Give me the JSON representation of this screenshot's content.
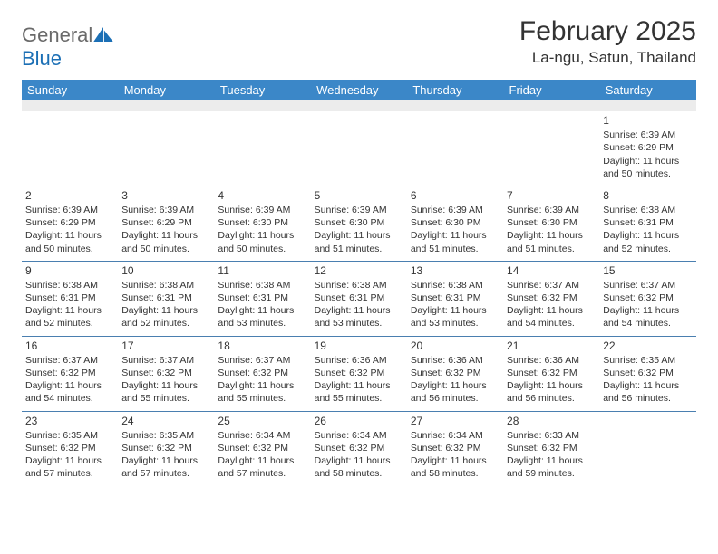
{
  "logo": {
    "text1": "General",
    "text2": "Blue"
  },
  "title": "February 2025",
  "location": "La-ngu, Satun, Thailand",
  "colors": {
    "header_bg": "#3b87c8",
    "header_text": "#ffffff",
    "spacer_bg": "#ececec",
    "row_border": "#4a7fb0",
    "body_text": "#333333",
    "logo_gray": "#6a6a6a",
    "logo_blue": "#1b6fb5"
  },
  "weekdays": [
    "Sunday",
    "Monday",
    "Tuesday",
    "Wednesday",
    "Thursday",
    "Friday",
    "Saturday"
  ],
  "weeks": [
    [
      null,
      null,
      null,
      null,
      null,
      null,
      {
        "n": "1",
        "sr": "6:39 AM",
        "ss": "6:29 PM",
        "dl": "11 hours and 50 minutes."
      }
    ],
    [
      {
        "n": "2",
        "sr": "6:39 AM",
        "ss": "6:29 PM",
        "dl": "11 hours and 50 minutes."
      },
      {
        "n": "3",
        "sr": "6:39 AM",
        "ss": "6:29 PM",
        "dl": "11 hours and 50 minutes."
      },
      {
        "n": "4",
        "sr": "6:39 AM",
        "ss": "6:30 PM",
        "dl": "11 hours and 50 minutes."
      },
      {
        "n": "5",
        "sr": "6:39 AM",
        "ss": "6:30 PM",
        "dl": "11 hours and 51 minutes."
      },
      {
        "n": "6",
        "sr": "6:39 AM",
        "ss": "6:30 PM",
        "dl": "11 hours and 51 minutes."
      },
      {
        "n": "7",
        "sr": "6:39 AM",
        "ss": "6:30 PM",
        "dl": "11 hours and 51 minutes."
      },
      {
        "n": "8",
        "sr": "6:38 AM",
        "ss": "6:31 PM",
        "dl": "11 hours and 52 minutes."
      }
    ],
    [
      {
        "n": "9",
        "sr": "6:38 AM",
        "ss": "6:31 PM",
        "dl": "11 hours and 52 minutes."
      },
      {
        "n": "10",
        "sr": "6:38 AM",
        "ss": "6:31 PM",
        "dl": "11 hours and 52 minutes."
      },
      {
        "n": "11",
        "sr": "6:38 AM",
        "ss": "6:31 PM",
        "dl": "11 hours and 53 minutes."
      },
      {
        "n": "12",
        "sr": "6:38 AM",
        "ss": "6:31 PM",
        "dl": "11 hours and 53 minutes."
      },
      {
        "n": "13",
        "sr": "6:38 AM",
        "ss": "6:31 PM",
        "dl": "11 hours and 53 minutes."
      },
      {
        "n": "14",
        "sr": "6:37 AM",
        "ss": "6:32 PM",
        "dl": "11 hours and 54 minutes."
      },
      {
        "n": "15",
        "sr": "6:37 AM",
        "ss": "6:32 PM",
        "dl": "11 hours and 54 minutes."
      }
    ],
    [
      {
        "n": "16",
        "sr": "6:37 AM",
        "ss": "6:32 PM",
        "dl": "11 hours and 54 minutes."
      },
      {
        "n": "17",
        "sr": "6:37 AM",
        "ss": "6:32 PM",
        "dl": "11 hours and 55 minutes."
      },
      {
        "n": "18",
        "sr": "6:37 AM",
        "ss": "6:32 PM",
        "dl": "11 hours and 55 minutes."
      },
      {
        "n": "19",
        "sr": "6:36 AM",
        "ss": "6:32 PM",
        "dl": "11 hours and 55 minutes."
      },
      {
        "n": "20",
        "sr": "6:36 AM",
        "ss": "6:32 PM",
        "dl": "11 hours and 56 minutes."
      },
      {
        "n": "21",
        "sr": "6:36 AM",
        "ss": "6:32 PM",
        "dl": "11 hours and 56 minutes."
      },
      {
        "n": "22",
        "sr": "6:35 AM",
        "ss": "6:32 PM",
        "dl": "11 hours and 56 minutes."
      }
    ],
    [
      {
        "n": "23",
        "sr": "6:35 AM",
        "ss": "6:32 PM",
        "dl": "11 hours and 57 minutes."
      },
      {
        "n": "24",
        "sr": "6:35 AM",
        "ss": "6:32 PM",
        "dl": "11 hours and 57 minutes."
      },
      {
        "n": "25",
        "sr": "6:34 AM",
        "ss": "6:32 PM",
        "dl": "11 hours and 57 minutes."
      },
      {
        "n": "26",
        "sr": "6:34 AM",
        "ss": "6:32 PM",
        "dl": "11 hours and 58 minutes."
      },
      {
        "n": "27",
        "sr": "6:34 AM",
        "ss": "6:32 PM",
        "dl": "11 hours and 58 minutes."
      },
      {
        "n": "28",
        "sr": "6:33 AM",
        "ss": "6:32 PM",
        "dl": "11 hours and 59 minutes."
      },
      null
    ]
  ],
  "labels": {
    "sunrise": "Sunrise:",
    "sunset": "Sunset:",
    "daylight": "Daylight:"
  }
}
